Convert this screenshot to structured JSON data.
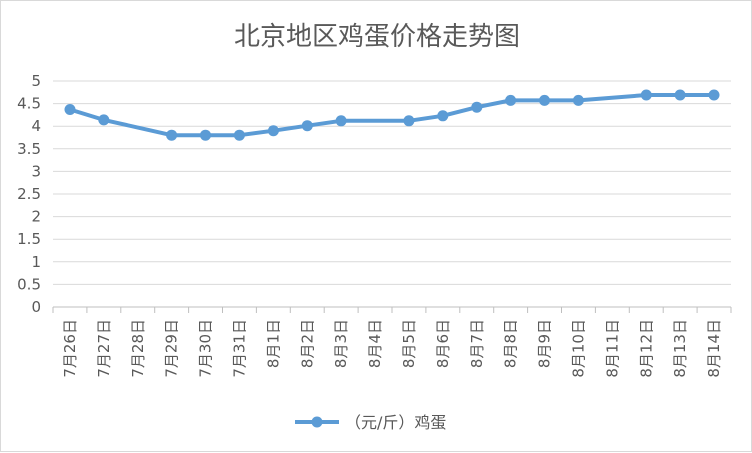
{
  "chart_data": {
    "type": "line",
    "title": "北京地区鸡蛋价格走势图",
    "categories": [
      "7月26日",
      "7月27日",
      "7月28日",
      "7月29日",
      "7月30日",
      "7月31日",
      "8月1日",
      "8月2日",
      "8月3日",
      "8月4日",
      "8月5日",
      "8月6日",
      "8月7日",
      "8月8日",
      "8月9日",
      "8月10日",
      "8月11日",
      "8月12日",
      "8月13日",
      "8月14日"
    ],
    "series": [
      {
        "name": "（元/斤）鸡蛋",
        "color": "#5b9bd5",
        "points": [
          {
            "x": "7月26日",
            "y": 4.37
          },
          {
            "x": "7月27日",
            "y": 4.14
          },
          {
            "x": "7月29日",
            "y": 3.8
          },
          {
            "x": "7月30日",
            "y": 3.8
          },
          {
            "x": "7月31日",
            "y": 3.8
          },
          {
            "x": "8月1日",
            "y": 3.9
          },
          {
            "x": "8月2日",
            "y": 4.01
          },
          {
            "x": "8月3日",
            "y": 4.12
          },
          {
            "x": "8月5日",
            "y": 4.12
          },
          {
            "x": "8月6日",
            "y": 4.23
          },
          {
            "x": "8月7日",
            "y": 4.42
          },
          {
            "x": "8月8日",
            "y": 4.57
          },
          {
            "x": "8月9日",
            "y": 4.57
          },
          {
            "x": "8月10日",
            "y": 4.57
          },
          {
            "x": "8月12日",
            "y": 4.69
          },
          {
            "x": "8月13日",
            "y": 4.69
          },
          {
            "x": "8月14日",
            "y": 4.69
          }
        ]
      }
    ],
    "y_ticks": [
      "0",
      "0.5",
      "1",
      "1.5",
      "2",
      "2.5",
      "3",
      "3.5",
      "4",
      "4.5",
      "5"
    ],
    "ylim": [
      0,
      5
    ],
    "grid": true,
    "legend": "bottom"
  }
}
